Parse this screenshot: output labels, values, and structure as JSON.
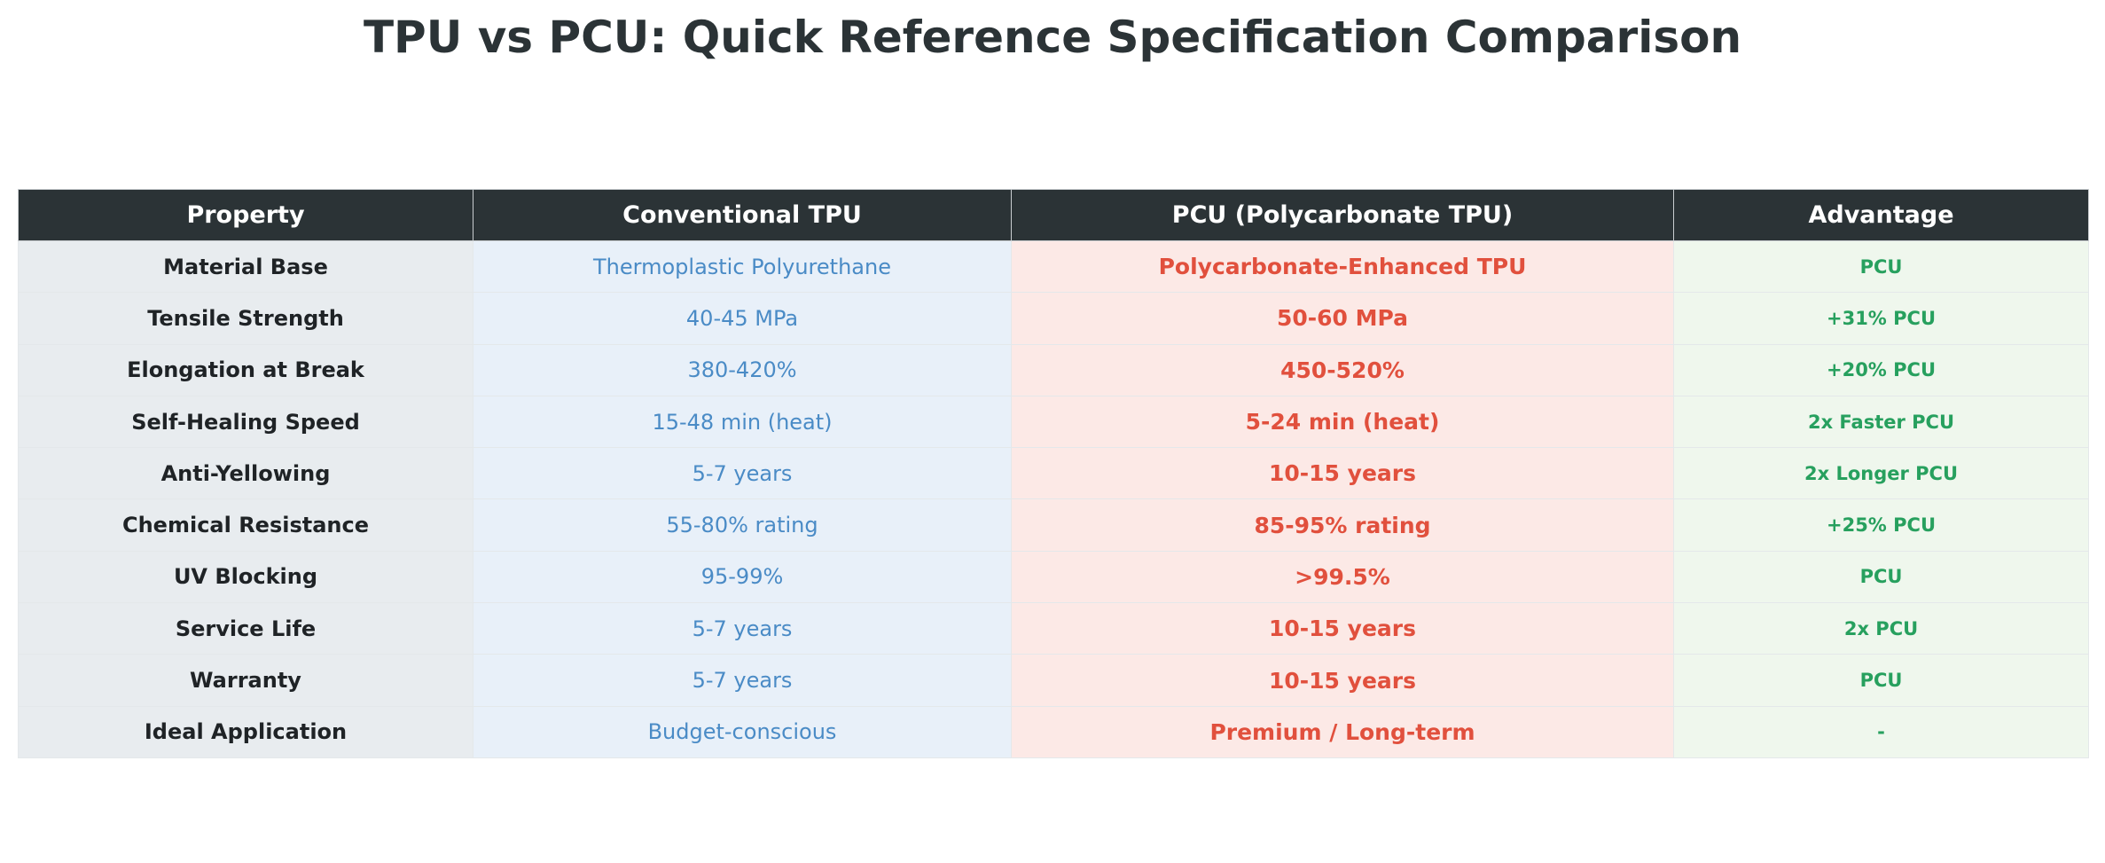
{
  "chart_data": {
    "type": "table",
    "title": "TPU vs PCU: Quick Reference Specification Comparison",
    "columns": [
      "Property",
      "Conventional TPU",
      "PCU (Polycarbonate TPU)",
      "Advantage"
    ],
    "rows": [
      [
        "Material Base",
        "Thermoplastic Polyurethane",
        "Polycarbonate-Enhanced TPU",
        "PCU"
      ],
      [
        "Tensile Strength",
        "40-45 MPa",
        "50-60 MPa",
        "+31% PCU"
      ],
      [
        "Elongation at Break",
        "380-420%",
        "450-520%",
        "+20% PCU"
      ],
      [
        "Self-Healing Speed",
        "15-48 min (heat)",
        "5-24 min (heat)",
        "2x Faster PCU"
      ],
      [
        "Anti-Yellowing",
        "5-7 years",
        "10-15 years",
        "2x Longer PCU"
      ],
      [
        "Chemical Resistance",
        "55-80% rating",
        "85-95% rating",
        "+25% PCU"
      ],
      [
        "UV Blocking",
        "95-99%",
        ">99.5%",
        "PCU"
      ],
      [
        "Service Life",
        "5-7 years",
        "10-15 years",
        "2x PCU"
      ],
      [
        "Warranty",
        "5-7 years",
        "10-15 years",
        "PCU"
      ],
      [
        "Ideal Application",
        "Budget-conscious",
        "Premium / Long-term",
        "-"
      ]
    ],
    "colors": {
      "header_bg": "#2b3336",
      "header_text": "#ffffff",
      "property_bg": "#e8ecef",
      "property_text": "#1f2326",
      "tpu_bg": "#e8f0f9",
      "tpu_text": "#4a8bc6",
      "pcu_bg": "#fce9e6",
      "pcu_text": "#e1503d",
      "advantage_bg": "#eff7ed",
      "advantage_text": "#27a05e"
    }
  }
}
